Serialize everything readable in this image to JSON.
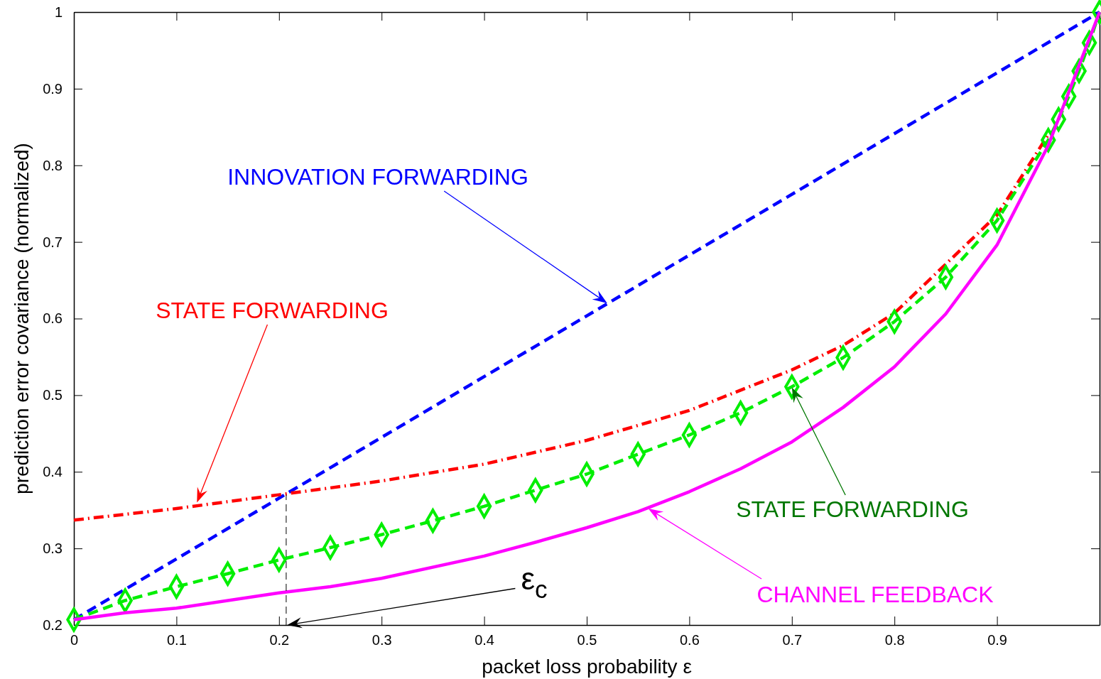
{
  "chart_data": {
    "type": "line",
    "xlabel": "packet loss probability ε",
    "ylabel": "prediction error covariance (normalized)",
    "xlim": [
      0,
      1
    ],
    "ylim": [
      0.2,
      1
    ],
    "xticks": [
      0,
      0.1,
      0.2,
      0.3,
      0.4,
      0.5,
      0.6,
      0.7,
      0.8,
      0.9,
      {
        "value": 1,
        "label": null
      }
    ],
    "yticks": [
      0.2,
      0.3,
      0.4,
      0.5,
      0.6,
      0.7,
      0.8,
      0.9,
      1
    ],
    "grid": false,
    "series": [
      {
        "color": "#0000ff",
        "line_style": "dashed",
        "marker": "none",
        "x": [
          0,
          1
        ],
        "values": [
          0.207,
          1
        ]
      },
      {
        "color": "#ff0000",
        "line_style": "dashdot",
        "marker": "none",
        "x": [
          0,
          0.1,
          0.2,
          0.3,
          0.4,
          0.5,
          0.6,
          0.7,
          0.75,
          0.8,
          0.9,
          0.95
        ],
        "values": [
          0.337,
          0.352,
          0.37,
          0.388,
          0.41,
          0.441,
          0.48,
          0.533,
          0.565,
          0.607,
          0.735,
          0.84
        ]
      },
      {
        "color": "#00ee00",
        "line_style": "dashed",
        "marker": "diamond",
        "x": [
          0,
          0.05,
          0.1,
          0.15,
          0.2,
          0.25,
          0.3,
          0.35,
          0.4,
          0.45,
          0.5,
          0.55,
          0.6,
          0.65,
          0.7,
          0.75,
          0.8,
          0.85,
          0.9,
          0.95,
          0.96,
          0.97,
          0.98,
          0.99,
          1
        ],
        "values": [
          0.207,
          0.232,
          0.25,
          0.267,
          0.285,
          0.301,
          0.318,
          0.336,
          0.355,
          0.376,
          0.397,
          0.423,
          0.448,
          0.477,
          0.511,
          0.549,
          0.596,
          0.654,
          0.728,
          0.833,
          0.86,
          0.89,
          0.923,
          0.96,
          1
        ]
      },
      {
        "color": "#ff00ff",
        "line_style": "solid",
        "marker": "none",
        "x": [
          0,
          0.05,
          0.1,
          0.2,
          0.25,
          0.3,
          0.4,
          0.45,
          0.5,
          0.55,
          0.6,
          0.65,
          0.7,
          0.75,
          0.8,
          0.85,
          0.9,
          0.95,
          1
        ],
        "values": [
          0.207,
          0.216,
          0.222,
          0.242,
          0.25,
          0.261,
          0.29,
          0.308,
          0.327,
          0.348,
          0.374,
          0.404,
          0.439,
          0.484,
          0.537,
          0.606,
          0.696,
          0.826,
          1
        ]
      },
      {
        "color": "#000000",
        "line_style": "dashed",
        "marker": "none",
        "x": [
          0.207,
          0.207
        ],
        "values": [
          0.2,
          0.37
        ]
      }
    ],
    "annotations": [
      {
        "text": "INNOVATION FORWARDING",
        "x": 0.52,
        "y": 0.62
      },
      {
        "text": "STATE FORWARDING",
        "x": 0.12,
        "y": 0.36
      },
      {
        "text": "STATE FORWARDING",
        "x": 0.7,
        "y": 0.51
      },
      {
        "text": "CHANNEL FEEDBACK",
        "x": 0.56,
        "y": 0.352
      },
      {
        "text": "ε$_{c}$",
        "x": 0.208,
        "y": 0.2
      }
    ]
  }
}
